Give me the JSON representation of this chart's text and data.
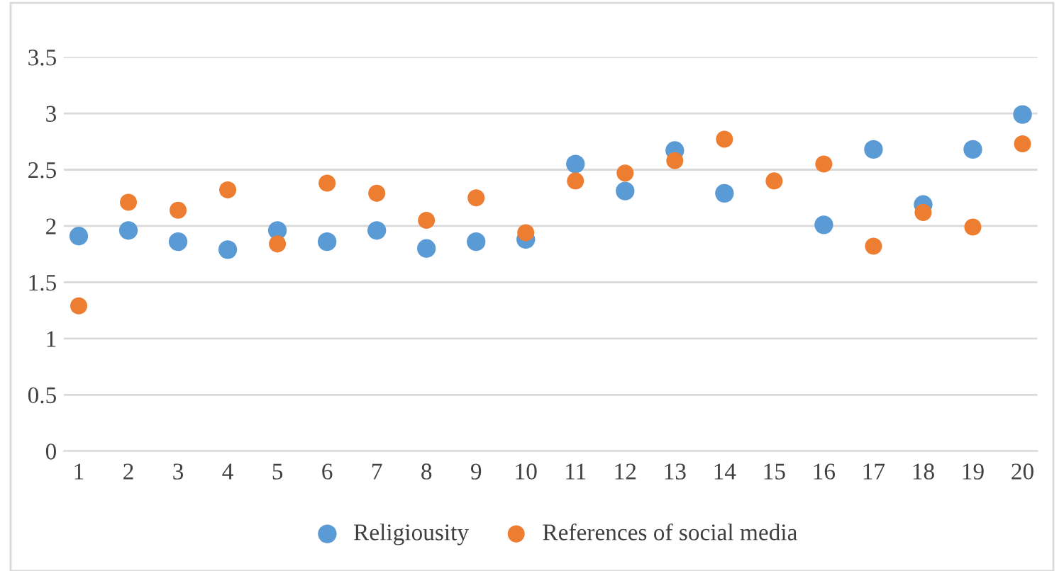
{
  "chart_data": {
    "type": "scatter",
    "categories": [
      "1",
      "2",
      "3",
      "4",
      "5",
      "6",
      "7",
      "8",
      "9",
      "10",
      "11",
      "12",
      "13",
      "14",
      "15",
      "16",
      "17",
      "18",
      "19",
      "20"
    ],
    "series": [
      {
        "name": "Religiousity",
        "color": "#5b9bd5",
        "values": [
          1.91,
          1.96,
          1.86,
          1.79,
          1.96,
          1.86,
          1.96,
          1.8,
          1.86,
          1.88,
          2.55,
          2.31,
          2.67,
          2.29,
          null,
          2.01,
          2.68,
          2.19,
          2.68,
          2.99
        ]
      },
      {
        "name": "References of social media",
        "color": "#ed7d31",
        "values": [
          1.29,
          2.21,
          2.14,
          2.32,
          1.84,
          2.38,
          2.29,
          2.05,
          2.25,
          1.94,
          2.4,
          2.47,
          2.58,
          2.77,
          2.4,
          2.55,
          1.82,
          2.12,
          1.99,
          2.73
        ]
      }
    ],
    "ylim": [
      0,
      3.5
    ],
    "yticks": [
      0,
      0.5,
      1,
      1.5,
      2,
      2.5,
      3,
      3.5
    ],
    "grid": "y",
    "legend": "bottom",
    "marker": "circle"
  }
}
